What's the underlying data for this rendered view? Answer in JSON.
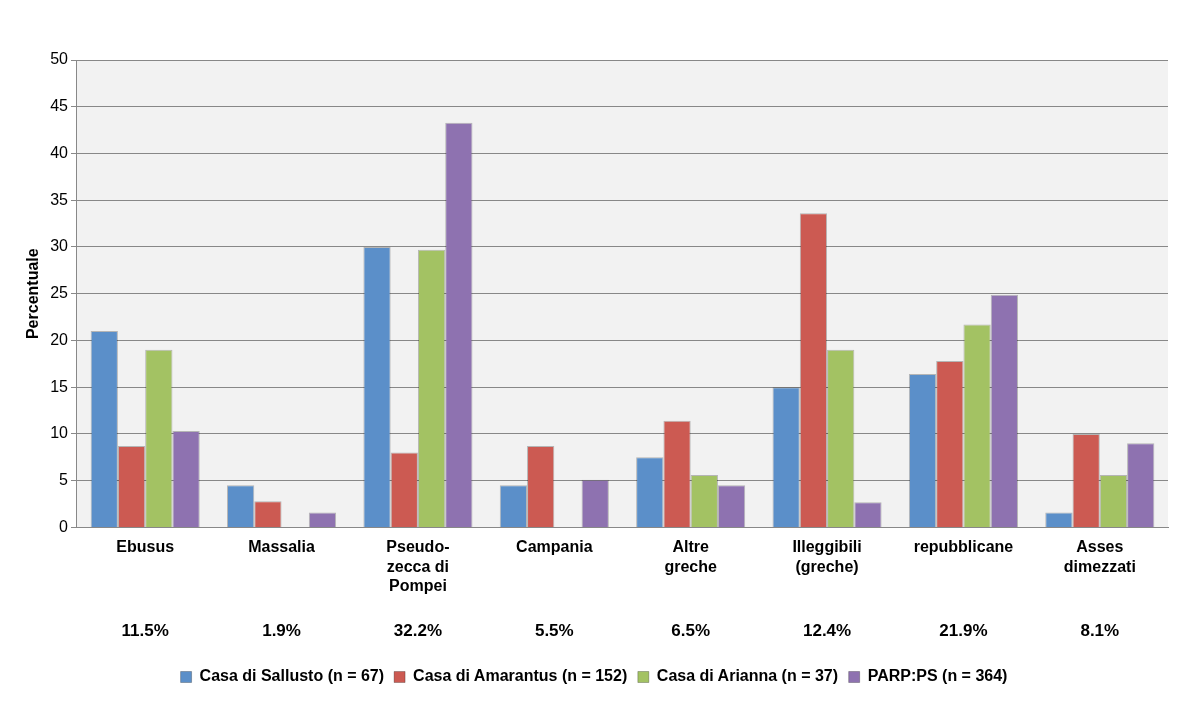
{
  "chart_data": {
    "type": "bar",
    "ylabel": "Percentuale",
    "categories": [
      "Ebusus",
      "Massalia",
      "Pseudo-zecca di Pompei",
      "Campania",
      "Altre greche",
      "Illeggibili (greche)",
      "repubblicane",
      "Asses dimezzati"
    ],
    "series": [
      {
        "name": "Casa di Sallusto (n = 67)",
        "color": "#5b8fc9",
        "values": [
          21.0,
          4.5,
          30.0,
          4.5,
          7.5,
          15.0,
          16.4,
          1.6
        ]
      },
      {
        "name": "Casa di Amarantus (n = 152)",
        "color": "#cc5a52",
        "values": [
          8.7,
          2.8,
          8.0,
          8.7,
          11.4,
          33.6,
          17.8,
          10.0
        ]
      },
      {
        "name": "Casa di Arianna (n = 37)",
        "color": "#a3c263",
        "values": [
          19.0,
          0,
          29.7,
          0,
          5.6,
          19.0,
          21.7,
          5.6
        ]
      },
      {
        "name": "PARP:PS (n = 364)",
        "color": "#8e72b0",
        "values": [
          10.3,
          1.6,
          43.3,
          5.1,
          4.5,
          2.7,
          24.9,
          9.0
        ]
      }
    ],
    "ylim": [
      0,
      50
    ],
    "yticks": [
      0,
      5,
      10,
      15,
      20,
      25,
      30,
      35,
      40,
      45,
      50
    ],
    "grid": "y",
    "legend": "bottom",
    "annotations": [
      "11.5%",
      "1.9%",
      "32.2%",
      "5.5%",
      "6.5%",
      "12.4%",
      "21.9%",
      "8.1%"
    ]
  }
}
